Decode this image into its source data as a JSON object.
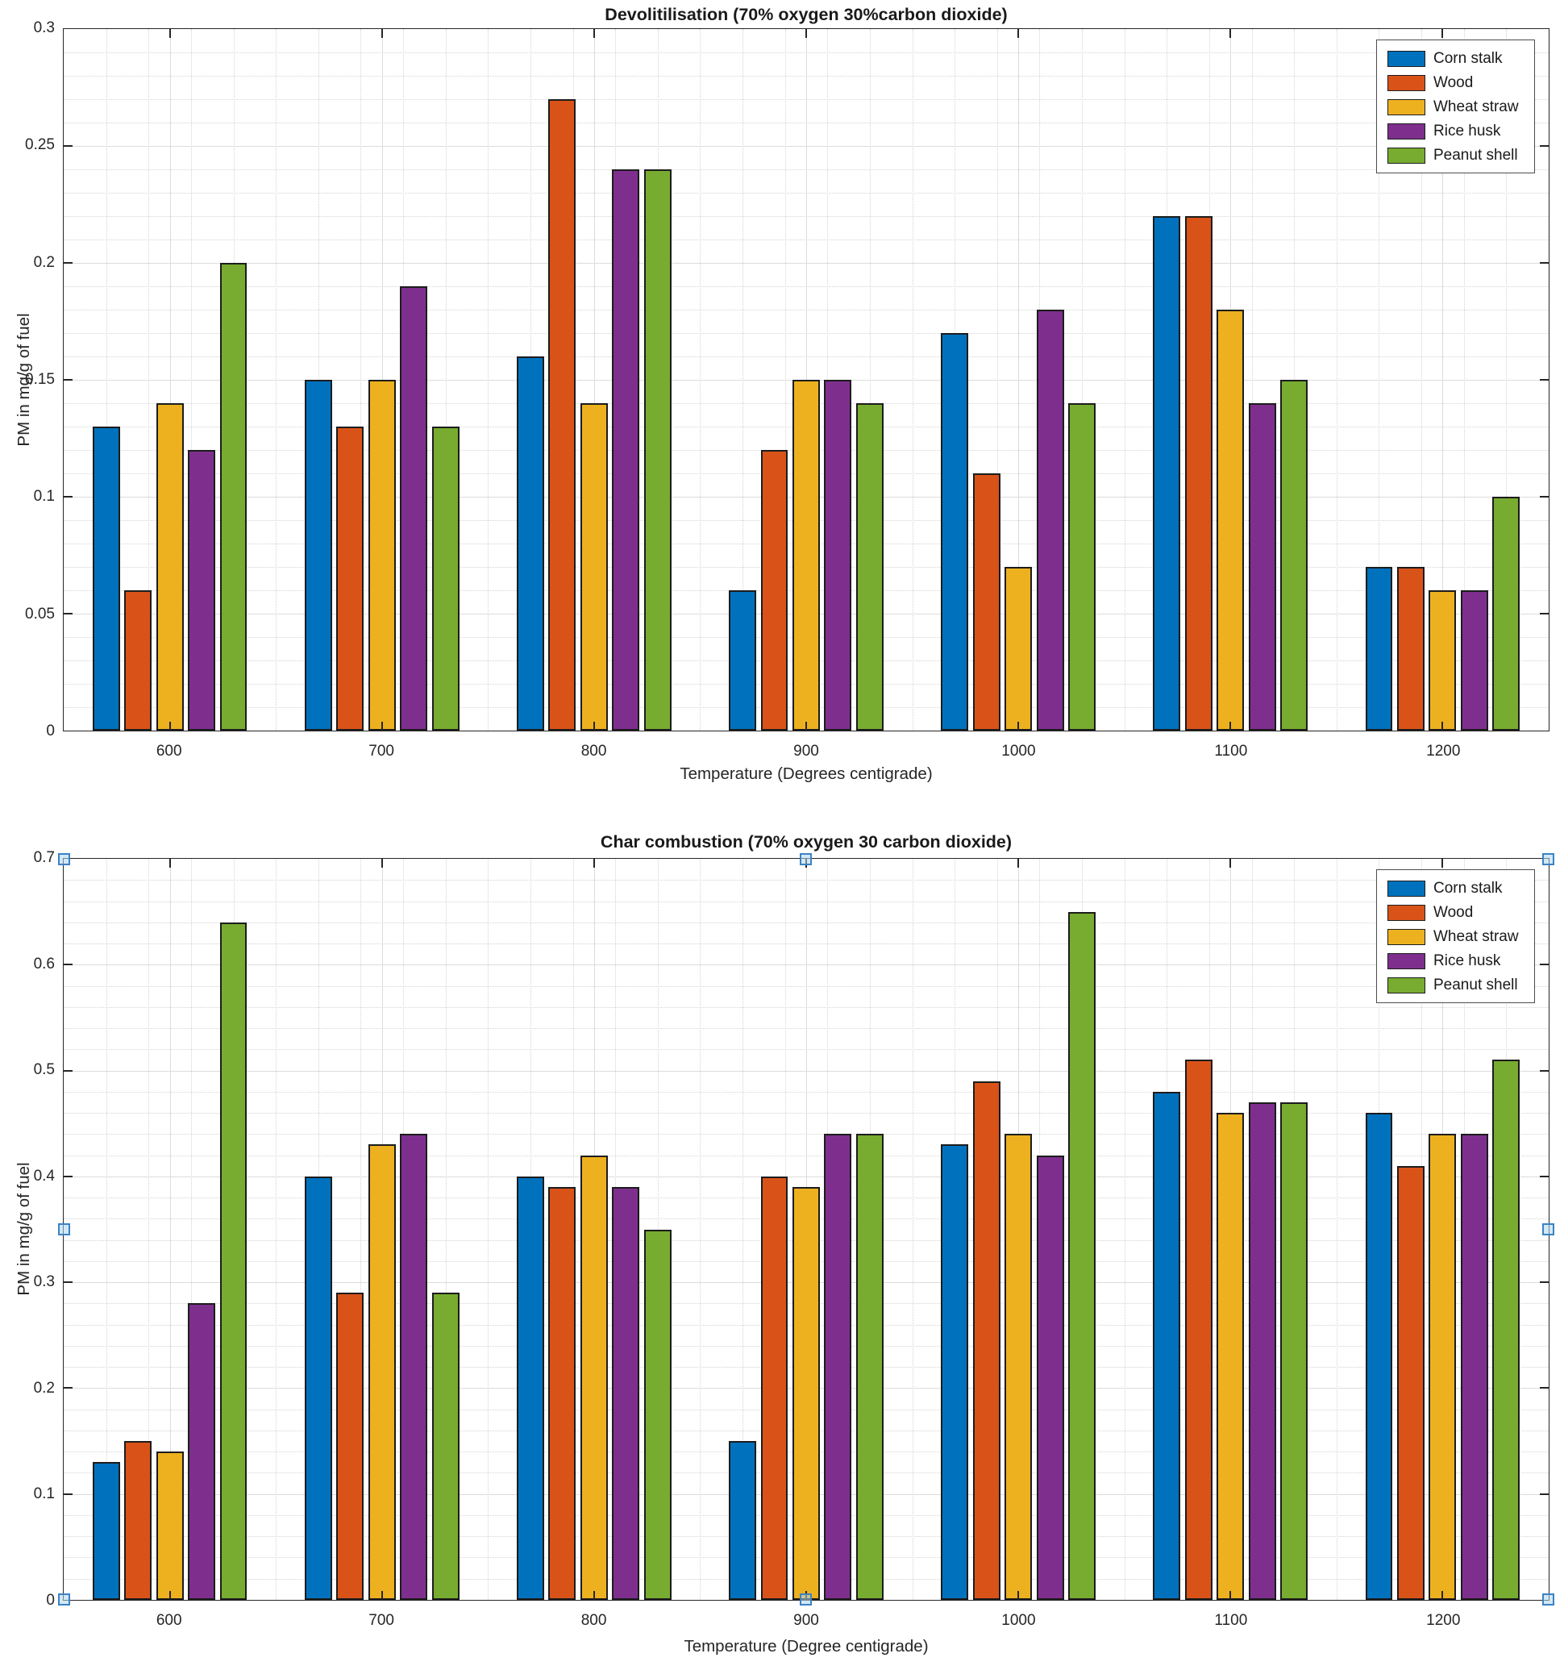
{
  "figure": {
    "background": "#ffffff"
  },
  "chart_data": [
    {
      "type": "bar",
      "title": "Devolitilisation (70% oxygen 30%carbon dioxide)",
      "xlabel": "Temperature (Degrees centigrade)",
      "ylabel": "PM in mg/g of fuel",
      "categories": [
        "600",
        "700",
        "800",
        "900",
        "1000",
        "1100",
        "1200"
      ],
      "series": [
        {
          "name": "Corn stalk",
          "color": "#0072BD",
          "values": [
            0.13,
            0.15,
            0.16,
            0.06,
            0.17,
            0.22,
            0.07
          ]
        },
        {
          "name": "Wood",
          "color": "#D95319",
          "values": [
            0.06,
            0.13,
            0.27,
            0.12,
            0.11,
            0.22,
            0.07
          ]
        },
        {
          "name": "Wheat straw",
          "color": "#EDB120",
          "values": [
            0.14,
            0.15,
            0.14,
            0.15,
            0.07,
            0.18,
            0.06
          ]
        },
        {
          "name": "Rice husk",
          "color": "#7E2F8E",
          "values": [
            0.12,
            0.19,
            0.24,
            0.15,
            0.18,
            0.14,
            0.06
          ]
        },
        {
          "name": "Peanut shell",
          "color": "#77AC30",
          "values": [
            0.2,
            0.13,
            0.24,
            0.14,
            0.14,
            0.15,
            0.1
          ]
        }
      ],
      "ylim": [
        0,
        0.3
      ],
      "yticks": [
        0,
        0.05,
        0.1,
        0.15,
        0.2,
        0.25,
        0.3
      ],
      "ytick_labels": [
        "0",
        "0.05",
        "0.1",
        "0.15",
        "0.2",
        "0.25",
        "0.3"
      ],
      "ytick_minor_step": 0.01,
      "grid": true,
      "legend_position": "top-right",
      "selected": false
    },
    {
      "type": "bar",
      "title": "Char combustion (70% oxygen 30 carbon dioxide)",
      "xlabel": "Temperature (Degree centigrade)",
      "ylabel": "PM in mg/g of fuel",
      "categories": [
        "600",
        "700",
        "800",
        "900",
        "1000",
        "1100",
        "1200"
      ],
      "series": [
        {
          "name": "Corn stalk",
          "color": "#0072BD",
          "values": [
            0.13,
            0.4,
            0.4,
            0.15,
            0.43,
            0.48,
            0.46
          ]
        },
        {
          "name": "Wood",
          "color": "#D95319",
          "values": [
            0.15,
            0.29,
            0.39,
            0.4,
            0.49,
            0.51,
            0.41
          ]
        },
        {
          "name": "Wheat straw",
          "color": "#EDB120",
          "values": [
            0.14,
            0.43,
            0.42,
            0.39,
            0.44,
            0.46,
            0.44
          ]
        },
        {
          "name": "Rice husk",
          "color": "#7E2F8E",
          "values": [
            0.28,
            0.44,
            0.39,
            0.44,
            0.42,
            0.47,
            0.44
          ]
        },
        {
          "name": "Peanut shell",
          "color": "#77AC30",
          "values": [
            0.64,
            0.29,
            0.35,
            0.44,
            0.65,
            0.47,
            0.51
          ]
        }
      ],
      "ylim": [
        0,
        0.7
      ],
      "yticks": [
        0,
        0.1,
        0.2,
        0.3,
        0.4,
        0.5,
        0.6,
        0.7
      ],
      "ytick_labels": [
        "0",
        "0.1",
        "0.2",
        "0.3",
        "0.4",
        "0.5",
        "0.6",
        "0.7"
      ],
      "ytick_minor_step": 0.02,
      "grid": true,
      "legend_position": "top-right",
      "selected": true
    }
  ],
  "selection_handle_colors": {
    "border": "#3b82c4",
    "fill": "#add6f1"
  }
}
